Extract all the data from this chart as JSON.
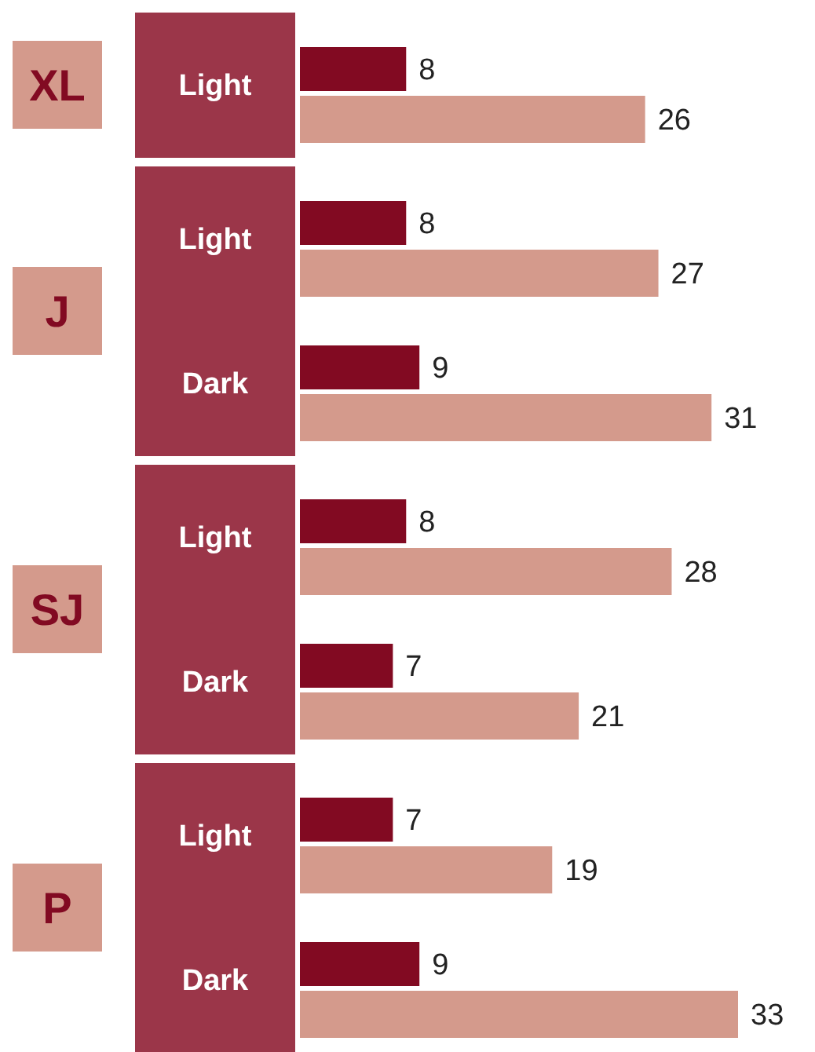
{
  "chart_data": {
    "type": "bar",
    "orientation": "horizontal",
    "categories": [
      "Light",
      "Light",
      "Dark",
      "Light",
      "Dark",
      "Light",
      "Dark"
    ],
    "series": [
      {
        "color": "#820a22",
        "values": [
          8,
          8,
          9,
          8,
          7,
          7,
          9
        ]
      },
      {
        "color": "#d49a8c",
        "values": [
          26,
          27,
          31,
          28,
          21,
          19,
          33
        ]
      }
    ],
    "data_labels": true,
    "annotations": [
      "XL",
      "J",
      "SJ",
      "P"
    ]
  }
}
